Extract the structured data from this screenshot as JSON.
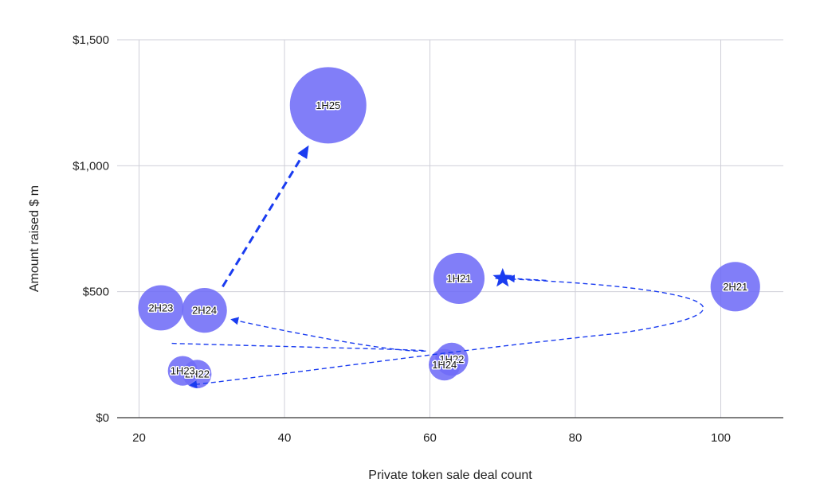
{
  "chart_data": {
    "type": "bubble",
    "xlabel": "Private token sale deal count",
    "ylabel": "Amount raised $ m",
    "xlim": [
      17,
      108
    ],
    "ylim": [
      0,
      1500
    ],
    "x_ticks": [
      20,
      40,
      60,
      80,
      100
    ],
    "y_ticks": [
      0,
      500,
      1000,
      1500
    ],
    "x_tick_labels": [
      "20",
      "40",
      "60",
      "80",
      "100"
    ],
    "y_tick_labels": [
      "$0",
      "$500",
      "$1,000",
      "$1,500"
    ],
    "grid": true,
    "bubble_color": "#6f6cf7",
    "arrow_color": "#1a3cf0",
    "points": [
      {
        "label": "1H21",
        "x": 64,
        "y": 553,
        "size": 553
      },
      {
        "label": "2H21",
        "x": 102,
        "y": 520,
        "size": 520
      },
      {
        "label": "1H22",
        "x": 63,
        "y": 232,
        "size": 232
      },
      {
        "label": "2H22",
        "x": 28,
        "y": 173,
        "size": 173
      },
      {
        "label": "1H23",
        "x": 26,
        "y": 186,
        "size": 186
      },
      {
        "label": "2H23",
        "x": 23,
        "y": 436,
        "size": 436
      },
      {
        "label": "1H24",
        "x": 62,
        "y": 210,
        "size": 210
      },
      {
        "label": "2H24",
        "x": 29,
        "y": 426,
        "size": 426
      },
      {
        "label": "1H25",
        "x": 46,
        "y": 1240,
        "size": 1240
      }
    ],
    "star_marker": {
      "x": 70,
      "y": 553
    }
  }
}
